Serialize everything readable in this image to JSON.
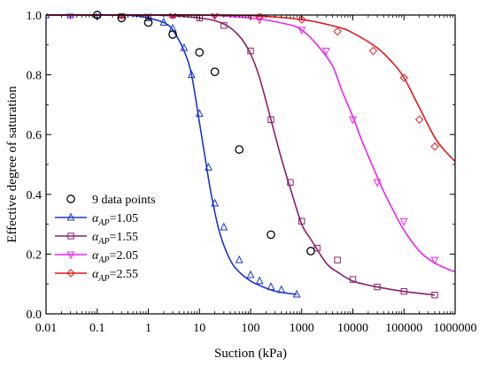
{
  "chart_data": {
    "type": "scatter",
    "xlabel": "Suction (kPa)",
    "ylabel": "Effective degree of saturation",
    "x_scale": "log",
    "xlim": [
      0.01,
      1000000
    ],
    "ylim": [
      0,
      1.0
    ],
    "x_ticks": [
      "0.01",
      "0.1",
      "1",
      "10",
      "100",
      "1000",
      "10000",
      "100000",
      "1000000"
    ],
    "y_ticks": [
      "0.0",
      "0.2",
      "0.4",
      "0.6",
      "0.8",
      "1.0"
    ],
    "legend_position": "lower-left",
    "grid": false,
    "measured": {
      "name": "9 data points",
      "marker": "circle",
      "color": "#000000",
      "x": [
        0.1,
        0.3,
        1,
        3,
        10,
        20,
        60,
        250,
        1500
      ],
      "y": [
        1.0,
        0.99,
        0.975,
        0.935,
        0.875,
        0.81,
        0.55,
        0.265,
        0.21
      ]
    },
    "series": [
      {
        "name_prefix": "α",
        "name_sub": "AP",
        "name_value": "=1.05",
        "color": "#1a35d4",
        "marker": "triangle-up",
        "x": [
          0.01,
          0.1,
          0.5,
          1,
          2,
          3,
          5,
          7,
          10,
          13,
          17,
          25,
          40,
          60,
          100,
          150,
          250,
          400,
          800
        ],
        "y": [
          1.0,
          1.0,
          0.998,
          0.99,
          0.975,
          0.95,
          0.88,
          0.8,
          0.64,
          0.52,
          0.4,
          0.27,
          0.18,
          0.14,
          0.11,
          0.095,
          0.08,
          0.072,
          0.065
        ],
        "markers_x": [
          0.01,
          0.03,
          0.1,
          0.3,
          1,
          2,
          3,
          5,
          7,
          10,
          15,
          20,
          30,
          60,
          100,
          150,
          250,
          400,
          800
        ],
        "markers_y": [
          1.0,
          1.0,
          1.0,
          0.999,
          0.99,
          0.975,
          0.955,
          0.89,
          0.8,
          0.67,
          0.49,
          0.37,
          0.29,
          0.18,
          0.13,
          0.11,
          0.09,
          0.08,
          0.065
        ]
      },
      {
        "name_prefix": "α",
        "name_sub": "AP",
        "name_value": "=1.55",
        "color": "#8b1f6b",
        "marker": "square",
        "x": [
          0.01,
          1,
          10,
          30,
          60,
          100,
          150,
          250,
          400,
          600,
          1000,
          1500,
          3000,
          5000,
          10000,
          30000,
          100000,
          400000
        ],
        "y": [
          1.0,
          1.0,
          0.99,
          0.97,
          0.93,
          0.87,
          0.79,
          0.65,
          0.52,
          0.42,
          0.3,
          0.25,
          0.17,
          0.14,
          0.11,
          0.09,
          0.075,
          0.063
        ],
        "markers_x": [
          0.3,
          1,
          3,
          10,
          30,
          100,
          250,
          600,
          1000,
          2000,
          5000,
          10000,
          30000,
          100000,
          400000
        ],
        "markers_y": [
          1.0,
          1.0,
          1.0,
          0.99,
          0.965,
          0.88,
          0.65,
          0.44,
          0.31,
          0.22,
          0.18,
          0.115,
          0.09,
          0.075,
          0.063
        ]
      },
      {
        "name_prefix": "α",
        "name_sub": "AP",
        "name_value": "=2.05",
        "color": "#ee22ee",
        "marker": "triangle-down",
        "x": [
          0.01,
          1,
          10,
          100,
          500,
          1000,
          2000,
          4000,
          6000,
          10000,
          15000,
          25000,
          40000,
          60000,
          100000,
          200000,
          400000,
          1000000
        ],
        "y": [
          1.0,
          1.0,
          1.0,
          0.99,
          0.97,
          0.95,
          0.9,
          0.83,
          0.75,
          0.66,
          0.58,
          0.49,
          0.41,
          0.35,
          0.28,
          0.21,
          0.17,
          0.14
        ],
        "markers_x": [
          0.03,
          0.3,
          3,
          20,
          150,
          1000,
          3000,
          10000,
          30000,
          100000,
          400000
        ],
        "markers_y": [
          1.0,
          1.0,
          1.0,
          0.998,
          0.985,
          0.95,
          0.88,
          0.65,
          0.44,
          0.31,
          0.18
        ]
      },
      {
        "name_prefix": "α",
        "name_sub": "AP",
        "name_value": "=2.55",
        "color": "#e41a1c",
        "marker": "diamond",
        "x": [
          0.01,
          1,
          10,
          100,
          1000,
          5000,
          10000,
          30000,
          60000,
          100000,
          200000,
          400000,
          600000,
          1000000
        ],
        "y": [
          1.0,
          1.0,
          1.0,
          0.998,
          0.985,
          0.96,
          0.94,
          0.89,
          0.84,
          0.79,
          0.69,
          0.59,
          0.55,
          0.51
        ],
        "markers_x": [
          0.3,
          3,
          20,
          150,
          1000,
          5000,
          25000,
          100000,
          200000,
          400000
        ],
        "markers_y": [
          1.0,
          1.0,
          1.0,
          0.995,
          0.985,
          0.945,
          0.88,
          0.79,
          0.65,
          0.56
        ]
      }
    ]
  }
}
